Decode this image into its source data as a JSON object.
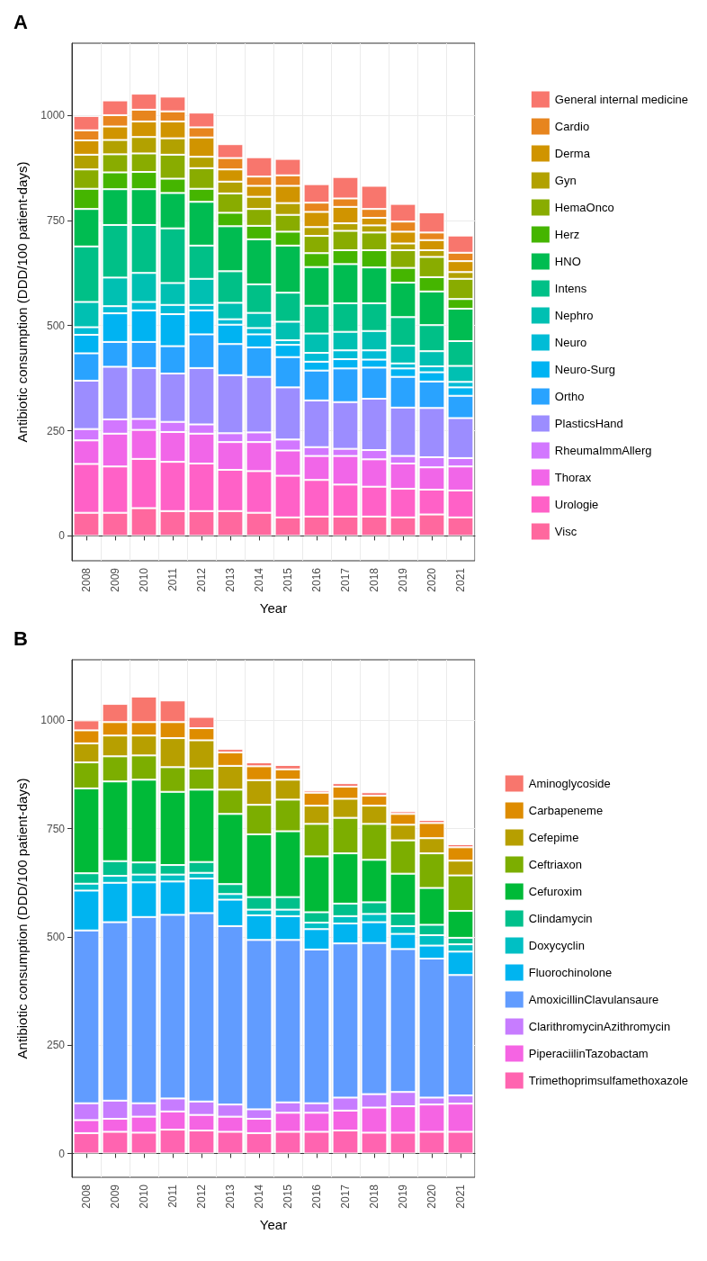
{
  "chart_data": [
    {
      "type": "bar",
      "title": "A",
      "xlabel": "Year",
      "ylabel": "Antibiotic consumption (DDD/100 patient-days)",
      "categories": [
        "2008",
        "2009",
        "2010",
        "2011",
        "2012",
        "2013",
        "2014",
        "2015",
        "2016",
        "2017",
        "2018",
        "2019",
        "2020",
        "2021"
      ],
      "stacked": true,
      "ylim": [
        -59,
        1171
      ],
      "yticks": [
        0,
        250,
        500,
        750,
        1000
      ],
      "grid": true,
      "legend": "right",
      "series": [
        {
          "name": "Visc",
          "color": "#ff689e",
          "values": [
            55,
            55,
            66,
            59,
            59,
            59,
            55,
            44,
            46,
            46,
            46,
            44,
            51,
            44
          ]
        },
        {
          "name": "Urologie",
          "color": "#ff61c7",
          "values": [
            116,
            110,
            117,
            117,
            113,
            98,
            99,
            99,
            87,
            76,
            71,
            68,
            59,
            64
          ]
        },
        {
          "name": "Thorax",
          "color": "#f166e8",
          "values": [
            56,
            78,
            69,
            71,
            71,
            66,
            69,
            60,
            57,
            68,
            65,
            60,
            53,
            57
          ]
        },
        {
          "name": "RheumaImmAllerg",
          "color": "#d277ff",
          "values": [
            27,
            34,
            26,
            24,
            22,
            21,
            23,
            26,
            21,
            17,
            22,
            18,
            24,
            20
          ]
        },
        {
          "name": "PlasticsHand",
          "color": "#9c8dff",
          "values": [
            115,
            125,
            121,
            115,
            134,
            138,
            132,
            124,
            111,
            111,
            122,
            115,
            117,
            95
          ]
        },
        {
          "name": "Ortho",
          "color": "#29a3ff",
          "values": [
            65,
            59,
            62,
            65,
            80,
            74,
            70,
            72,
            71,
            80,
            74,
            73,
            63,
            53
          ]
        },
        {
          "name": "Neuro-Surg",
          "color": "#00b3f2",
          "values": [
            44,
            68,
            75,
            76,
            57,
            46,
            31,
            29,
            21,
            22,
            19,
            20,
            22,
            20
          ]
        },
        {
          "name": "Neuro",
          "color": "#00bcd6",
          "values": [
            18,
            17,
            20,
            22,
            13,
            13,
            15,
            11,
            21,
            21,
            22,
            12,
            14,
            13
          ]
        },
        {
          "name": "Nephro",
          "color": "#00c0b2",
          "values": [
            60,
            68,
            69,
            52,
            62,
            39,
            36,
            44,
            46,
            44,
            46,
            42,
            36,
            38
          ]
        },
        {
          "name": "Intens",
          "color": "#00c087",
          "values": [
            132,
            125,
            114,
            130,
            79,
            75,
            68,
            69,
            66,
            68,
            66,
            68,
            62,
            59
          ]
        },
        {
          "name": "HNO",
          "color": "#00bc51",
          "values": [
            89,
            85,
            85,
            84,
            104,
            107,
            107,
            112,
            92,
            93,
            85,
            82,
            80,
            77
          ]
        },
        {
          "name": "Herz",
          "color": "#45b500",
          "values": [
            48,
            40,
            41,
            34,
            31,
            32,
            32,
            33,
            33,
            33,
            41,
            35,
            34,
            23
          ]
        },
        {
          "name": "HemaOnco",
          "color": "#89ac00",
          "values": [
            46,
            43,
            44,
            57,
            49,
            46,
            40,
            40,
            41,
            46,
            42,
            42,
            48,
            48
          ]
        },
        {
          "name": "Gyn",
          "color": "#b2a100",
          "values": [
            35,
            34,
            39,
            39,
            27,
            28,
            29,
            28,
            21,
            18,
            17,
            16,
            16,
            16
          ]
        },
        {
          "name": "Derma",
          "color": "#d09400",
          "values": [
            34,
            32,
            37,
            40,
            46,
            29,
            26,
            41,
            36,
            39,
            18,
            28,
            24,
            26
          ]
        },
        {
          "name": "Cardio",
          "color": "#e7851e",
          "values": [
            24,
            27,
            28,
            24,
            24,
            27,
            22,
            25,
            22,
            20,
            21,
            24,
            18,
            20
          ]
        },
        {
          "name": "General internal medicine",
          "color": "#f8766d",
          "values": [
            34,
            35,
            38,
            35,
            35,
            33,
            46,
            39,
            44,
            51,
            55,
            42,
            48,
            41
          ]
        }
      ]
    },
    {
      "type": "bar",
      "title": "B",
      "xlabel": "Year",
      "ylabel": "Antibiotic consumption (DDD/100 patient-days)",
      "categories": [
        "2008",
        "2009",
        "2010",
        "2011",
        "2012",
        "2013",
        "2014",
        "2015",
        "2016",
        "2017",
        "2018",
        "2019",
        "2020",
        "2021"
      ],
      "stacked": true,
      "ylim": [
        -55,
        1140
      ],
      "yticks": [
        0,
        250,
        500,
        750,
        1000
      ],
      "grid": true,
      "legend": "right",
      "series": [
        {
          "name": "Trimethoprimsulfamethoxazole",
          "color": "#ff64b0",
          "values": [
            47,
            50,
            48,
            55,
            53,
            50,
            47,
            50,
            50,
            53,
            48,
            48,
            50,
            50
          ]
        },
        {
          "name": "PiperaciilinTazobactam",
          "color": "#f564e3",
          "values": [
            30,
            30,
            37,
            42,
            36,
            35,
            33,
            44,
            44,
            46,
            58,
            61,
            63,
            65
          ]
        },
        {
          "name": "ClarithromycinAzithromycin",
          "color": "#c77cff",
          "values": [
            39,
            42,
            31,
            30,
            31,
            28,
            22,
            24,
            22,
            30,
            31,
            33,
            16,
            19
          ]
        },
        {
          "name": "AmoxicillinClavulansaure",
          "color": "#619cff",
          "values": [
            399,
            412,
            430,
            424,
            435,
            412,
            391,
            375,
            355,
            356,
            349,
            330,
            321,
            278
          ]
        },
        {
          "name": "Fluorochinolone",
          "color": "#00b4f0",
          "values": [
            92,
            91,
            80,
            77,
            80,
            61,
            57,
            55,
            47,
            46,
            48,
            35,
            30,
            54
          ]
        },
        {
          "name": "Doxycyclin",
          "color": "#00bfc4",
          "values": [
            16,
            16,
            18,
            16,
            13,
            13,
            13,
            15,
            15,
            17,
            19,
            18,
            24,
            17
          ]
        },
        {
          "name": "Clindamycin",
          "color": "#00c08b",
          "values": [
            24,
            34,
            28,
            22,
            25,
            23,
            29,
            29,
            24,
            29,
            27,
            29,
            24,
            15
          ]
        },
        {
          "name": "Cefuroxim",
          "color": "#00ba38",
          "values": [
            196,
            184,
            191,
            169,
            167,
            162,
            145,
            152,
            129,
            116,
            98,
            92,
            85,
            62
          ]
        },
        {
          "name": "Ceftriaxon",
          "color": "#7cae00",
          "values": [
            60,
            58,
            56,
            57,
            49,
            56,
            68,
            73,
            75,
            82,
            83,
            77,
            80,
            82
          ]
        },
        {
          "name": "Cefepime",
          "color": "#b79f00",
          "values": [
            44,
            48,
            46,
            67,
            65,
            55,
            57,
            46,
            42,
            44,
            42,
            36,
            35,
            34
          ]
        },
        {
          "name": "Carbapeneme",
          "color": "#de8c00",
          "values": [
            30,
            31,
            31,
            37,
            28,
            31,
            32,
            24,
            30,
            28,
            23,
            25,
            35,
            31
          ]
        },
        {
          "name": "Aminoglycoside",
          "color": "#f8766d",
          "values": [
            23,
            42,
            59,
            50,
            26,
            8,
            9,
            10,
            5,
            8,
            8,
            6,
            7,
            7
          ]
        }
      ]
    }
  ]
}
